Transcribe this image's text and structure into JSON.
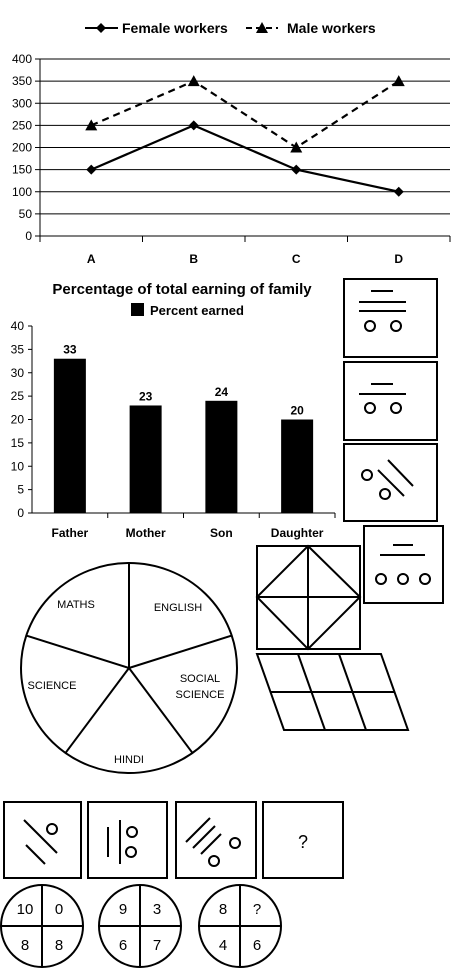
{
  "chart_data": [
    {
      "type": "line",
      "title": "",
      "categories": [
        "A",
        "B",
        "C",
        "D"
      ],
      "series": [
        {
          "name": "Female workers",
          "values": [
            150,
            250,
            150,
            100
          ],
          "marker": "diamond",
          "line": "solid"
        },
        {
          "name": "Male workers",
          "values": [
            250,
            350,
            200,
            350
          ],
          "marker": "triangle",
          "line": "dashed"
        }
      ],
      "yticks": [
        0,
        50,
        100,
        150,
        200,
        250,
        300,
        350,
        400
      ],
      "ylim": [
        0,
        400
      ],
      "grid": true,
      "legend": "top"
    },
    {
      "type": "bar",
      "title": "Percentage of total earning of family",
      "categories": [
        "Father",
        "Mother",
        "Son",
        "Daughter"
      ],
      "series": [
        {
          "name": "Percent earned",
          "values": [
            33,
            23,
            24,
            20
          ]
        }
      ],
      "data_labels": [
        "33",
        "23",
        "24",
        "20"
      ],
      "yticks": [
        0,
        5,
        10,
        15,
        20,
        25,
        30,
        35,
        40
      ],
      "ylim": [
        0,
        40
      ],
      "grid": false,
      "legend": "top"
    },
    {
      "type": "pie",
      "labels": [
        "MATHS",
        "ENGLISH",
        "SOCIAL|SCIENCE",
        "HINDI",
        "SCIENCE"
      ],
      "values": [
        20,
        20,
        20,
        20,
        20
      ]
    }
  ],
  "puzzles": {
    "question_mark": "?",
    "number_circles": [
      [
        "10",
        "0",
        "8",
        "8"
      ],
      [
        "9",
        "3",
        "6",
        "7"
      ],
      [
        "8",
        "?",
        "4",
        "6"
      ]
    ]
  },
  "colors": {
    "ink": "#000000",
    "grid": "#000000",
    "background": "#ffffff"
  }
}
